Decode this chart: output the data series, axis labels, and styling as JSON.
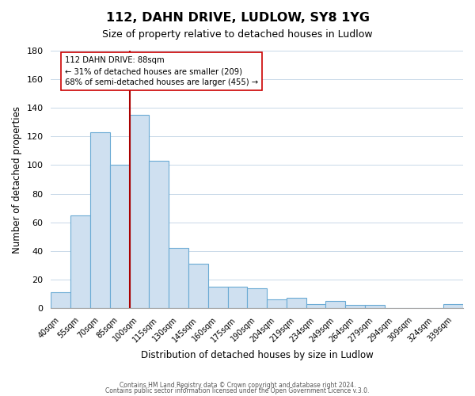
{
  "title": "112, DAHN DRIVE, LUDLOW, SY8 1YG",
  "subtitle": "Size of property relative to detached houses in Ludlow",
  "xlabel": "Distribution of detached houses by size in Ludlow",
  "ylabel": "Number of detached properties",
  "bar_labels": [
    "40sqm",
    "55sqm",
    "70sqm",
    "85sqm",
    "100sqm",
    "115sqm",
    "130sqm",
    "145sqm",
    "160sqm",
    "175sqm",
    "190sqm",
    "204sqm",
    "219sqm",
    "234sqm",
    "249sqm",
    "264sqm",
    "279sqm",
    "294sqm",
    "309sqm",
    "324sqm",
    "339sqm"
  ],
  "bar_values": [
    11,
    65,
    123,
    100,
    135,
    103,
    42,
    31,
    15,
    15,
    14,
    6,
    7,
    3,
    5,
    2,
    2,
    0,
    0,
    0,
    3
  ],
  "bar_color": "#cfe0f0",
  "bar_edge_color": "#6aaad4",
  "ylim": [
    0,
    180
  ],
  "yticks": [
    0,
    20,
    40,
    60,
    80,
    100,
    120,
    140,
    160,
    180
  ],
  "property_line_x_label": "85sqm",
  "property_line_color": "#aa0000",
  "annotation_line1": "112 DAHN DRIVE: 88sqm",
  "annotation_line2": "← 31% of detached houses are smaller (209)",
  "annotation_line3": "68% of semi-detached houses are larger (455) →",
  "annotation_box_color": "#ffffff",
  "annotation_box_edge": "#cc0000",
  "footer_line1": "Contains HM Land Registry data © Crown copyright and database right 2024.",
  "footer_line2": "Contains public sector information licensed under the Open Government Licence v.3.0.",
  "background_color": "#ffffff",
  "grid_color": "#c8d8e8"
}
